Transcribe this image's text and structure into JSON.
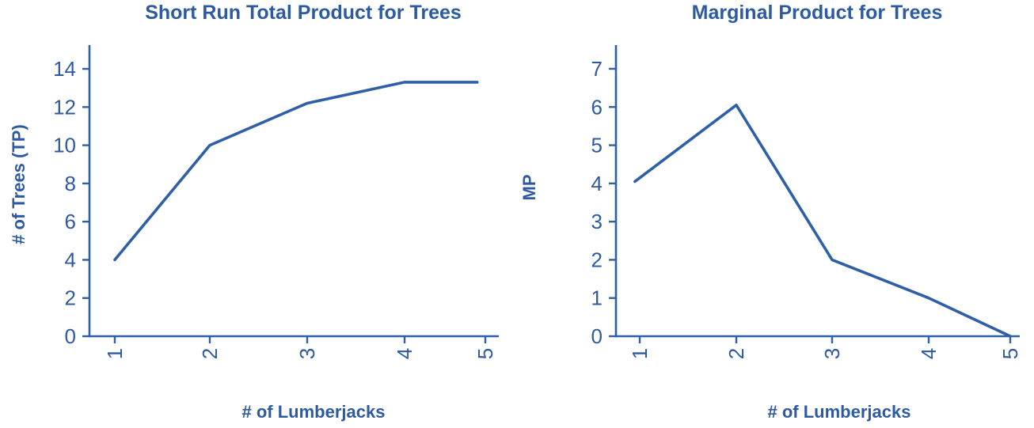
{
  "page": {
    "background": "#ffffff"
  },
  "colors": {
    "accent_blue": "#2F5FA7",
    "text_blue": "#2D5AA0"
  },
  "chart_data": [
    {
      "type": "line",
      "title": "Short Run Total Product for Trees",
      "xlabel": "# of Lumberjacks",
      "ylabel": "# of Trees (TP)",
      "x_ticks": [
        1,
        2,
        3,
        4,
        5
      ],
      "y_ticks": [
        0,
        2,
        4,
        6,
        8,
        10,
        12,
        14
      ],
      "ylim": [
        0,
        15.2
      ],
      "xlim": [
        1,
        5
      ],
      "grid": false,
      "legend": "none",
      "tick_label_rotation": -90,
      "series": [
        {
          "name": "Total Product (TP)",
          "x": [
            1,
            2,
            3,
            4,
            4.9
          ],
          "y": [
            4,
            10,
            12.2,
            13.3,
            13.3
          ]
        }
      ]
    },
    {
      "type": "line",
      "title": "Marginal Product for Trees",
      "xlabel": "# of Lumberjacks",
      "ylabel": "MP",
      "x_ticks": [
        1,
        2,
        3,
        4,
        5
      ],
      "y_ticks": [
        0,
        1,
        2,
        3,
        4,
        5,
        6,
        7
      ],
      "ylim": [
        0,
        7.6
      ],
      "xlim": [
        1,
        5
      ],
      "grid": false,
      "legend": "none",
      "tick_label_rotation": -90,
      "series": [
        {
          "name": "Marginal Product (MP)",
          "x": [
            0.95,
            2,
            3,
            4,
            5
          ],
          "y": [
            4.05,
            6.05,
            2,
            1,
            0
          ]
        }
      ]
    }
  ]
}
